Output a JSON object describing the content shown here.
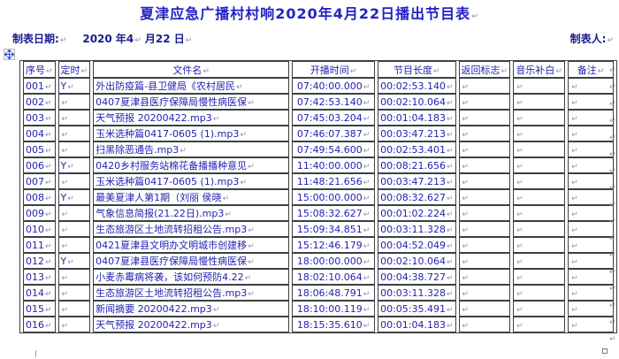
{
  "page": {
    "title": "夏津应急广播村村响2020年4月22日播出节目表",
    "meta": {
      "date_label": "制表日期:",
      "date_year_part": "2020 年4",
      "date_day_part": "月22 日",
      "maker_label": "制表人:"
    },
    "marks": {
      "return_glyph": "↵"
    }
  },
  "colors": {
    "title_blue": "#2323c4",
    "text_blue": "#2323b0",
    "label_navy": "#1b1b8f",
    "mark_gray": "#8f8fae",
    "border_dark": "#3f3f3f",
    "handle_blue": "#3b5bd6"
  },
  "icons": {
    "move_handle": "four-direction-arrows",
    "resize_handle": "small-square"
  },
  "table": {
    "headers": [
      "序号",
      "定时",
      "文件名",
      "开播时间",
      "节目长度",
      "返回标志",
      "音乐补白",
      "备注"
    ],
    "rows": [
      {
        "seq": "001",
        "timed": "Y",
        "filename": "外出防疫篇-县卫健局《农村居民",
        "start_time": "07:40:00.000",
        "duration": "00:02:53.140",
        "return_flag": "",
        "music_fill": "",
        "note": ""
      },
      {
        "seq": "002",
        "timed": "",
        "filename": "0407夏津县医疗保障局慢性病医保",
        "start_time": "07:42:53.140",
        "duration": "00:02:10.064",
        "return_flag": "",
        "music_fill": "",
        "note": ""
      },
      {
        "seq": "003",
        "timed": "",
        "filename": "天气预报 20200422.mp3",
        "start_time": "07:45:03.204",
        "duration": "00:01:04.183",
        "return_flag": "",
        "music_fill": "",
        "note": ""
      },
      {
        "seq": "004",
        "timed": "",
        "filename": "玉米选种篇0417-0605 (1).mp3",
        "start_time": "07:46:07.387",
        "duration": "00:03:47.213",
        "return_flag": "",
        "music_fill": "",
        "note": ""
      },
      {
        "seq": "005",
        "timed": "",
        "filename": "扫黑除恶通告.mp3",
        "start_time": "07:49:54.600",
        "duration": "00:02:53.401",
        "return_flag": "",
        "music_fill": "",
        "note": ""
      },
      {
        "seq": "006",
        "timed": "Y",
        "filename": "0420乡村服务站棉花备播播种意见",
        "start_time": "11:40:00.000",
        "duration": "00:08:21.656",
        "return_flag": "",
        "music_fill": "",
        "note": ""
      },
      {
        "seq": "007",
        "timed": "",
        "filename": "玉米选种篇0417-0605 (1).mp3",
        "start_time": "11:48:21.656",
        "duration": "00:03:47.213",
        "return_flag": "",
        "music_fill": "",
        "note": ""
      },
      {
        "seq": "008",
        "timed": "Y",
        "filename": "最美夏津人第1期（刘丽 侯晓",
        "start_time": "15:00:00.000",
        "duration": "00:08:32.627",
        "return_flag": "",
        "music_fill": "",
        "note": ""
      },
      {
        "seq": "009",
        "timed": "",
        "filename": "气象信息简报(21.22日).mp3",
        "start_time": "15:08:32.627",
        "duration": "00:01:02.224",
        "return_flag": "",
        "music_fill": "",
        "note": ""
      },
      {
        "seq": "010",
        "timed": "",
        "filename": "生态旅游区土地流转招租公告.mp3",
        "start_time": "15:09:34.851",
        "duration": "00:03:11.328",
        "return_flag": "",
        "music_fill": "",
        "note": ""
      },
      {
        "seq": "011",
        "timed": "",
        "filename": "0421夏津县文明办文明城市创建移",
        "start_time": "15:12:46.179",
        "duration": "00:04:52.049",
        "return_flag": "",
        "music_fill": "",
        "note": ""
      },
      {
        "seq": "012",
        "timed": "Y",
        "filename": "0407夏津县医疗保障局慢性病医保",
        "start_time": "18:00:00.000",
        "duration": "00:02:10.064",
        "return_flag": "",
        "music_fill": "",
        "note": ""
      },
      {
        "seq": "013",
        "timed": "",
        "filename": "小麦赤霉病将袭，该如何预防4.22",
        "start_time": "18:02:10.064",
        "duration": "00:04:38.727",
        "return_flag": "",
        "music_fill": "",
        "note": ""
      },
      {
        "seq": "014",
        "timed": "",
        "filename": "生态旅游区土地流转招租公告.mp3",
        "start_time": "18:06:48.791",
        "duration": "00:03:11.328",
        "return_flag": "",
        "music_fill": "",
        "note": ""
      },
      {
        "seq": "015",
        "timed": "",
        "filename": "新闻摘要 20200422.mp3",
        "start_time": "18:10:00.119",
        "duration": "00:05:35.491",
        "return_flag": "",
        "music_fill": "",
        "note": ""
      },
      {
        "seq": "016",
        "timed": "",
        "filename": "天气预报 20200422.mp3",
        "start_time": "18:15:35.610",
        "duration": "00:01:04.183",
        "return_flag": "",
        "music_fill": "",
        "note": ""
      }
    ]
  }
}
